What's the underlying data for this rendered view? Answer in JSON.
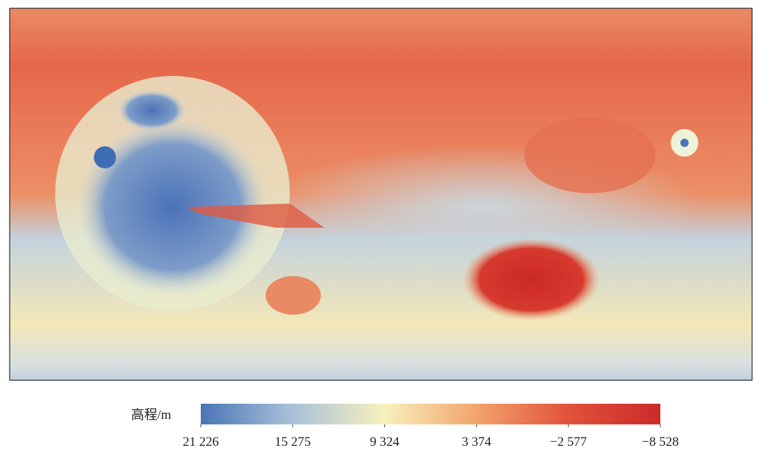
{
  "colorbar": {
    "label": "高程/m",
    "ticks": [
      {
        "value": 21226,
        "label": "21 226"
      },
      {
        "value": 15275,
        "label": "15 275"
      },
      {
        "value": 9324,
        "label": "9 324"
      },
      {
        "value": 3374,
        "label": "3 374"
      },
      {
        "value": -2577,
        "label": "−2 577"
      },
      {
        "value": -8528,
        "label": "−8 528"
      }
    ],
    "colors": [
      "#4a74b6",
      "#a9c2d8",
      "#f7f0bc",
      "#f2a46c",
      "#e0523a",
      "#cc2a2a"
    ]
  }
}
